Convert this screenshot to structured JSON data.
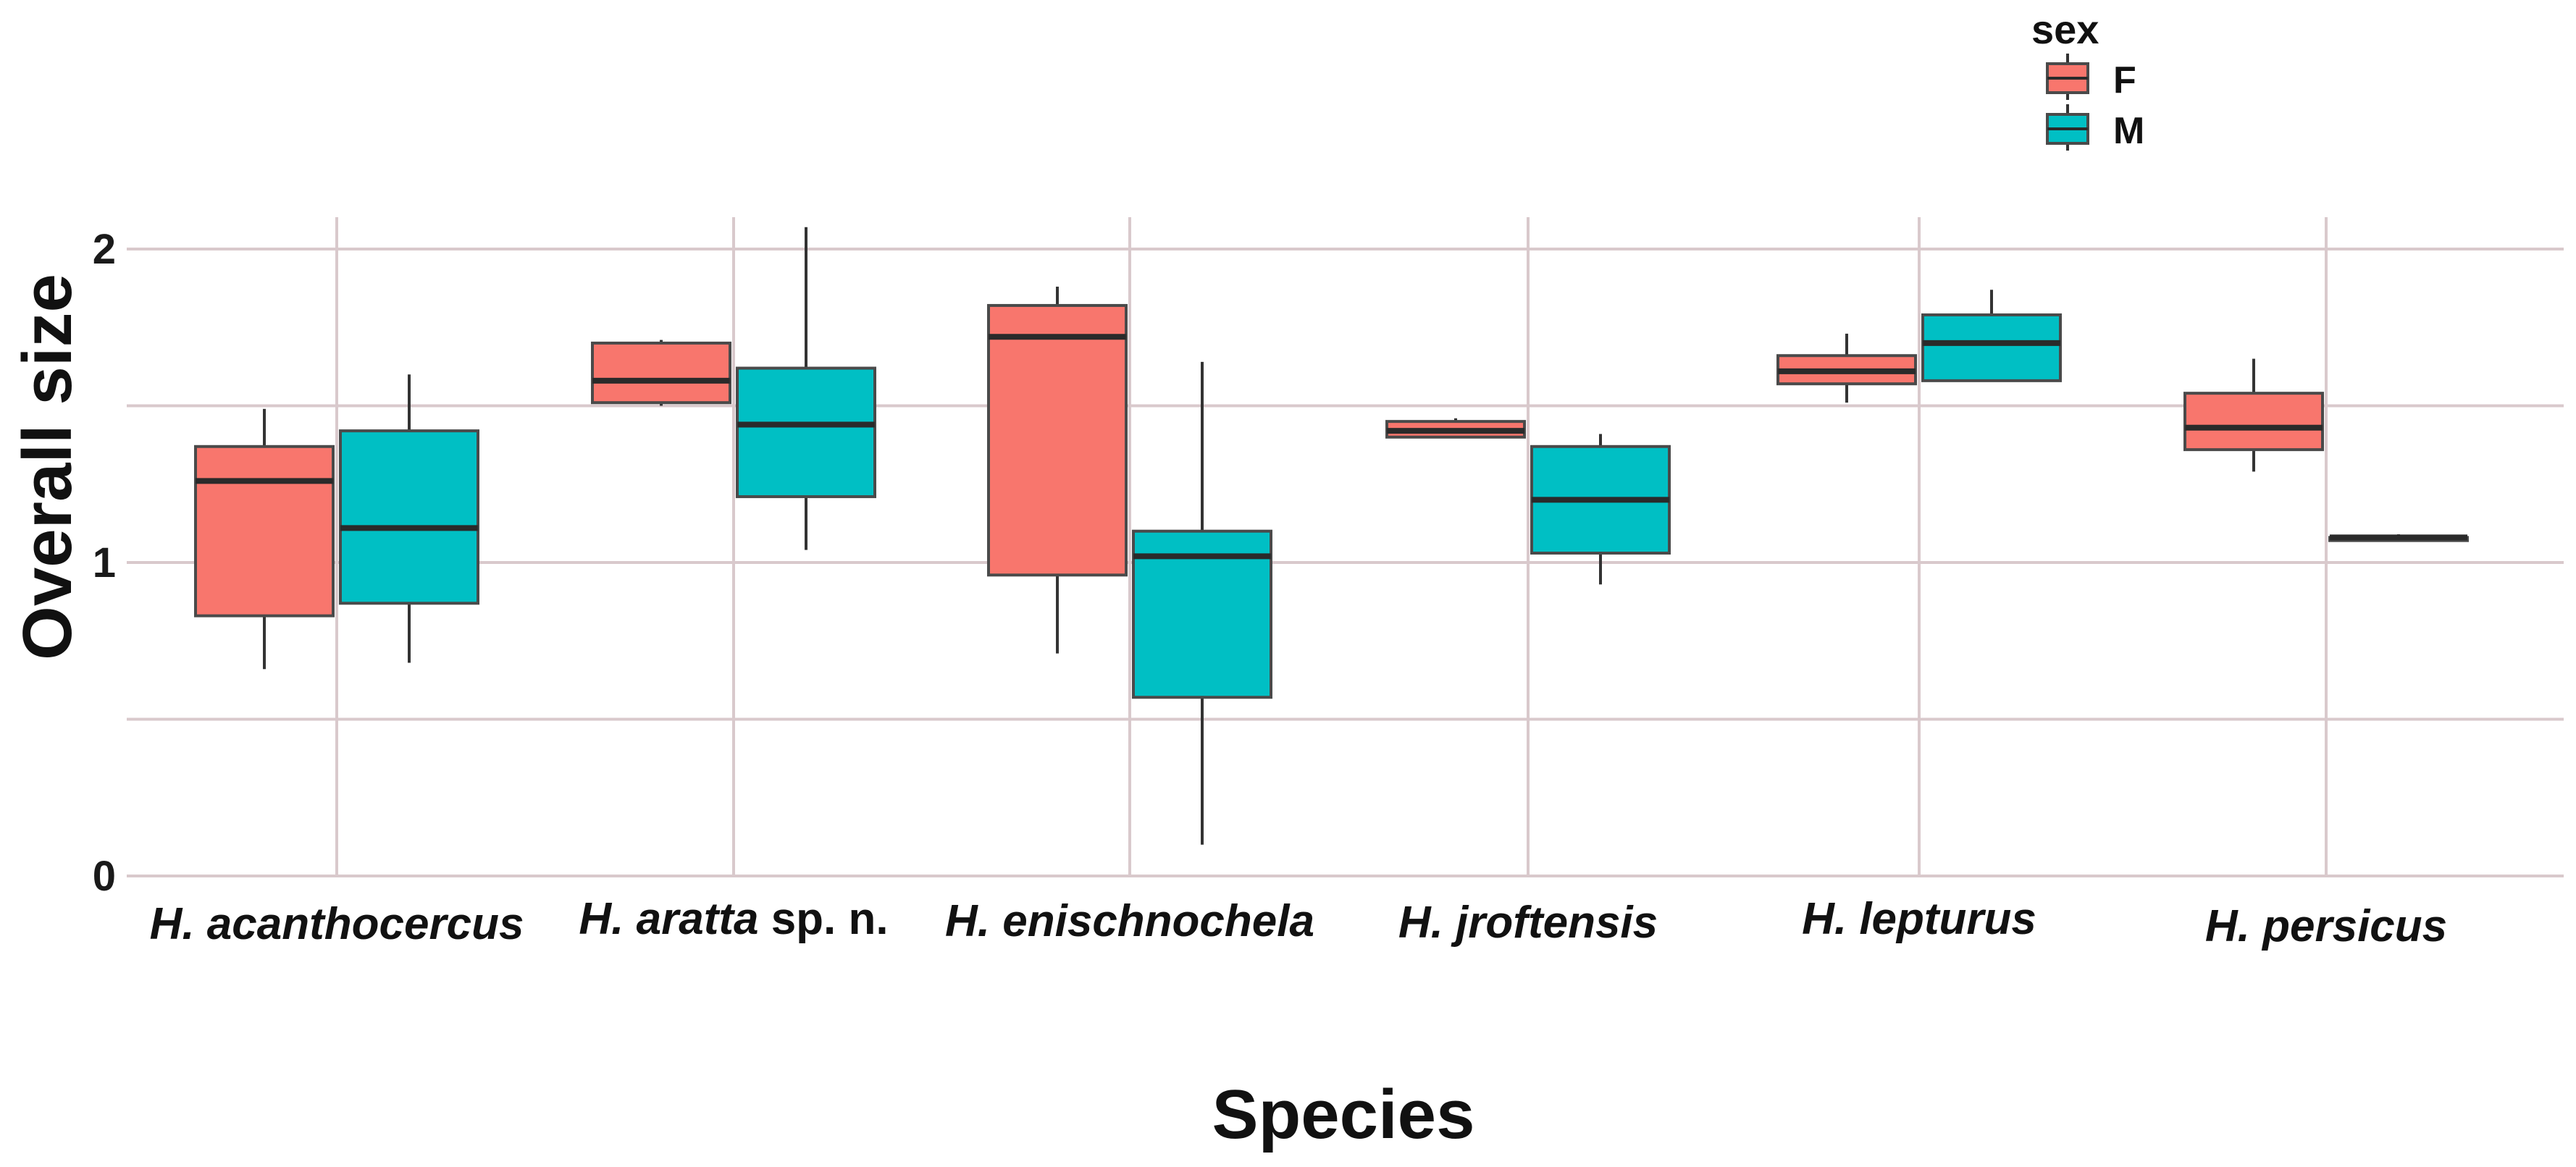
{
  "chart_data": {
    "type": "boxplot",
    "xlabel": "Species",
    "ylabel": "Overall size",
    "ylim": [
      0,
      2.1
    ],
    "y_ticks": [
      "0",
      "1",
      "2"
    ],
    "y_tick_values": [
      0,
      1,
      2
    ],
    "grid": true,
    "legend": {
      "title": "sex",
      "position": "top-right"
    },
    "categories": [
      {
        "italic": "H. acanthocercus",
        "suffix": ""
      },
      {
        "italic": "H. aratta",
        "suffix": " sp. n."
      },
      {
        "italic": "H. enischnochela",
        "suffix": ""
      },
      {
        "italic": "H. jroftensis",
        "suffix": ""
      },
      {
        "italic": "H. lepturus",
        "suffix": ""
      },
      {
        "italic": "H. persicus",
        "suffix": ""
      }
    ],
    "series": [
      {
        "name": "F",
        "color": "#f8766d",
        "boxes": [
          {
            "min": 0.66,
            "q1": 0.83,
            "median": 1.26,
            "q3": 1.37,
            "max": 1.49
          },
          {
            "min": 1.5,
            "q1": 1.51,
            "median": 1.58,
            "q3": 1.7,
            "max": 1.71
          },
          {
            "min": 0.71,
            "q1": 0.96,
            "median": 1.72,
            "q3": 1.82,
            "max": 1.88
          },
          {
            "min": 1.4,
            "q1": 1.4,
            "median": 1.42,
            "q3": 1.45,
            "max": 1.46
          },
          {
            "min": 1.51,
            "q1": 1.57,
            "median": 1.61,
            "q3": 1.66,
            "max": 1.73
          },
          {
            "min": 1.29,
            "q1": 1.36,
            "median": 1.43,
            "q3": 1.54,
            "max": 1.65
          }
        ]
      },
      {
        "name": "M",
        "color": "#00bfc4",
        "boxes": [
          {
            "min": 0.68,
            "q1": 0.87,
            "median": 1.11,
            "q3": 1.42,
            "max": 1.6
          },
          {
            "min": 1.04,
            "q1": 1.21,
            "median": 1.44,
            "q3": 1.62,
            "max": 2.07
          },
          {
            "min": 0.1,
            "q1": 0.57,
            "median": 1.02,
            "q3": 1.1,
            "max": 1.64
          },
          {
            "min": 0.93,
            "q1": 1.03,
            "median": 1.2,
            "q3": 1.37,
            "max": 1.41
          },
          {
            "min": 1.58,
            "q1": 1.58,
            "median": 1.7,
            "q3": 1.79,
            "max": 1.87
          },
          {
            "min": 1.07,
            "q1": 1.07,
            "median": 1.08,
            "q3": 1.08,
            "max": 1.09
          }
        ]
      }
    ]
  }
}
